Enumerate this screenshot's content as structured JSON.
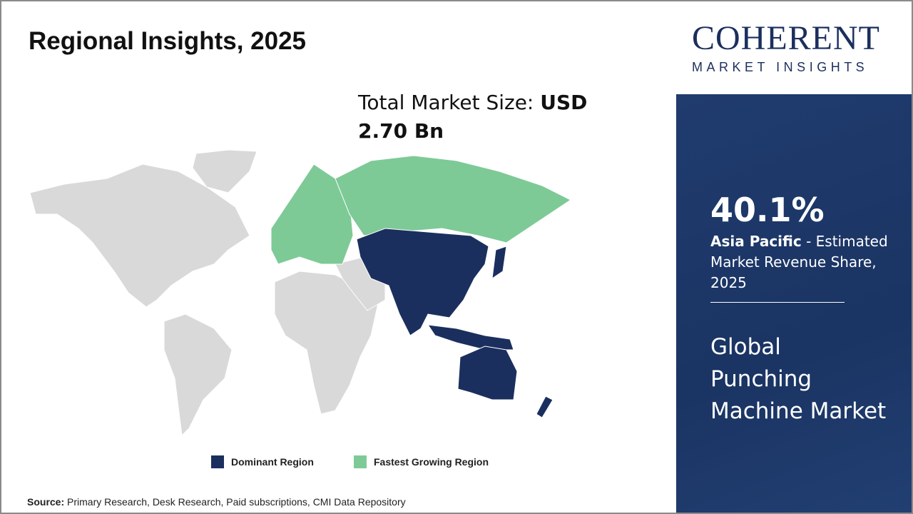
{
  "title": "Regional Insights, 2025",
  "total_market": {
    "label": "Total Market Size: ",
    "value": "USD 2.70 Bn"
  },
  "legend": [
    {
      "label": "Dominant Region",
      "color": "#1b2f5e"
    },
    {
      "label": "Fastest Growing Region",
      "color": "#7dca97"
    }
  ],
  "map": {
    "regions": {
      "asia_pacific": "dominant",
      "europe_russia": "fastest-growing",
      "other": "neutral"
    },
    "neutral_color": "#d9d9d9"
  },
  "source": {
    "label": "Source:",
    "text": " Primary Research, Desk Research, Paid subscriptions, CMI Data Repository"
  },
  "logo": {
    "name": "COHERENT",
    "tagline": "MARKET INSIGHTS"
  },
  "highlight": {
    "percent": "40.1%",
    "region": "Asia Pacific",
    "description": " - Estimated Market Revenue Share, 2025"
  },
  "market_name": "Global Punching Machine Market"
}
